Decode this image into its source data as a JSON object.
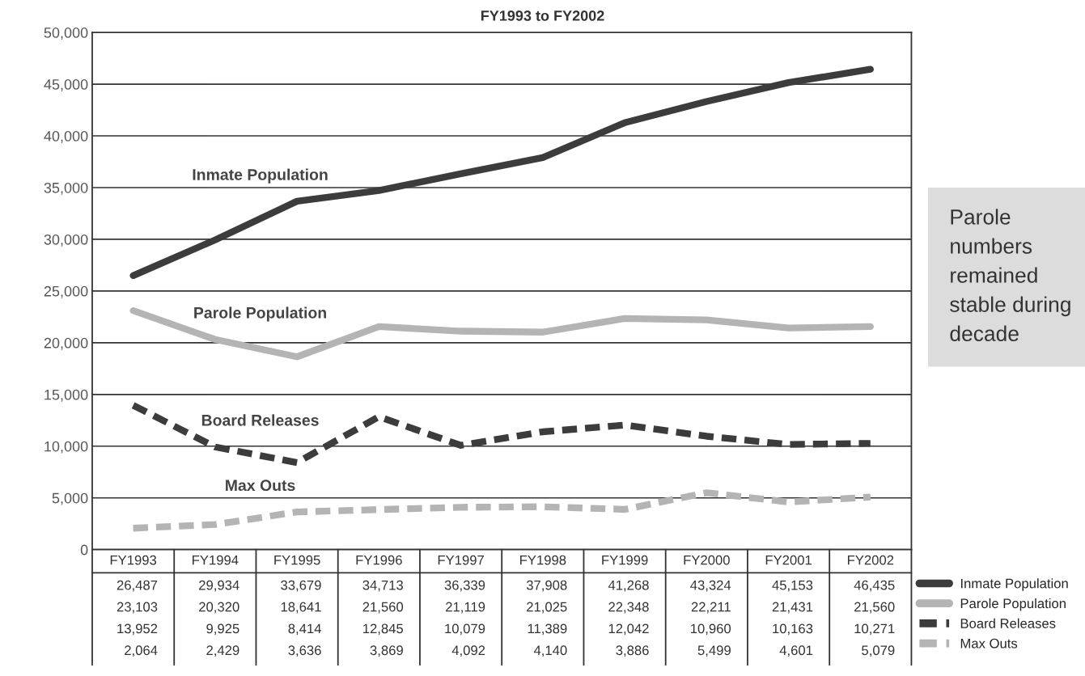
{
  "chart_data": {
    "type": "line",
    "title": "FY1993 to FY2002",
    "categories": [
      "FY1993",
      "FY1994",
      "FY1995",
      "FY1996",
      "FY1997",
      "FY1998",
      "FY1999",
      "FY2000",
      "FY2001",
      "FY2002"
    ],
    "series": [
      {
        "name": "Inmate Population",
        "color": "#3c3c3c",
        "line_style": "solid",
        "values": [
          26487,
          29934,
          33679,
          34713,
          36339,
          37908,
          41268,
          43324,
          45153,
          46435
        ],
        "value_labels": [
          "26,487",
          "29,934",
          "33,679",
          "34,713",
          "36,339",
          "37,908",
          "41,268",
          "43,324",
          "45,153",
          "46,435"
        ]
      },
      {
        "name": "Parole Population",
        "color": "#b4b4b4",
        "line_style": "solid",
        "values": [
          23103,
          20320,
          18641,
          21560,
          21119,
          21025,
          22348,
          22211,
          21431,
          21560
        ],
        "value_labels": [
          "23,103",
          "20,320",
          "18,641",
          "21,560",
          "21,119",
          "21,025",
          "22,348",
          "22,211",
          "21,431",
          "21,560"
        ]
      },
      {
        "name": "Board Releases",
        "color": "#3c3c3c",
        "line_style": "dashed",
        "values": [
          13952,
          9925,
          8414,
          12845,
          10079,
          11389,
          12042,
          10960,
          10163,
          10271
        ],
        "value_labels": [
          "13,952",
          "9,925",
          "8,414",
          "12,845",
          "10,079",
          "11,389",
          "12,042",
          "10,960",
          "10,163",
          "10,271"
        ]
      },
      {
        "name": "Max Outs",
        "color": "#b4b4b4",
        "line_style": "dashed",
        "values": [
          2064,
          2429,
          3636,
          3869,
          4092,
          4140,
          3886,
          5499,
          4601,
          5079
        ],
        "value_labels": [
          "2,064",
          "2,429",
          "3,636",
          "3,869",
          "4,092",
          "4,140",
          "3,886",
          "5,499",
          "4,601",
          "5,079"
        ]
      }
    ],
    "ylim": [
      0,
      50000
    ],
    "yticks": [
      {
        "value": 0,
        "label": "0"
      },
      {
        "value": 5000,
        "label": "5,000"
      },
      {
        "value": 10000,
        "label": "10,000"
      },
      {
        "value": 15000,
        "label": "15,000"
      },
      {
        "value": 20000,
        "label": "20,000"
      },
      {
        "value": 25000,
        "label": "25,000"
      },
      {
        "value": 30000,
        "label": "30,000"
      },
      {
        "value": 35000,
        "label": "35,000"
      },
      {
        "value": 40000,
        "label": "40,000"
      },
      {
        "value": 45000,
        "label": "45,000"
      },
      {
        "value": 50000,
        "label": "50,000"
      }
    ],
    "grid": "y",
    "legend": "bottom right",
    "marker": "none",
    "annotations": [
      "Parole numbers remained stable during decade"
    ]
  }
}
